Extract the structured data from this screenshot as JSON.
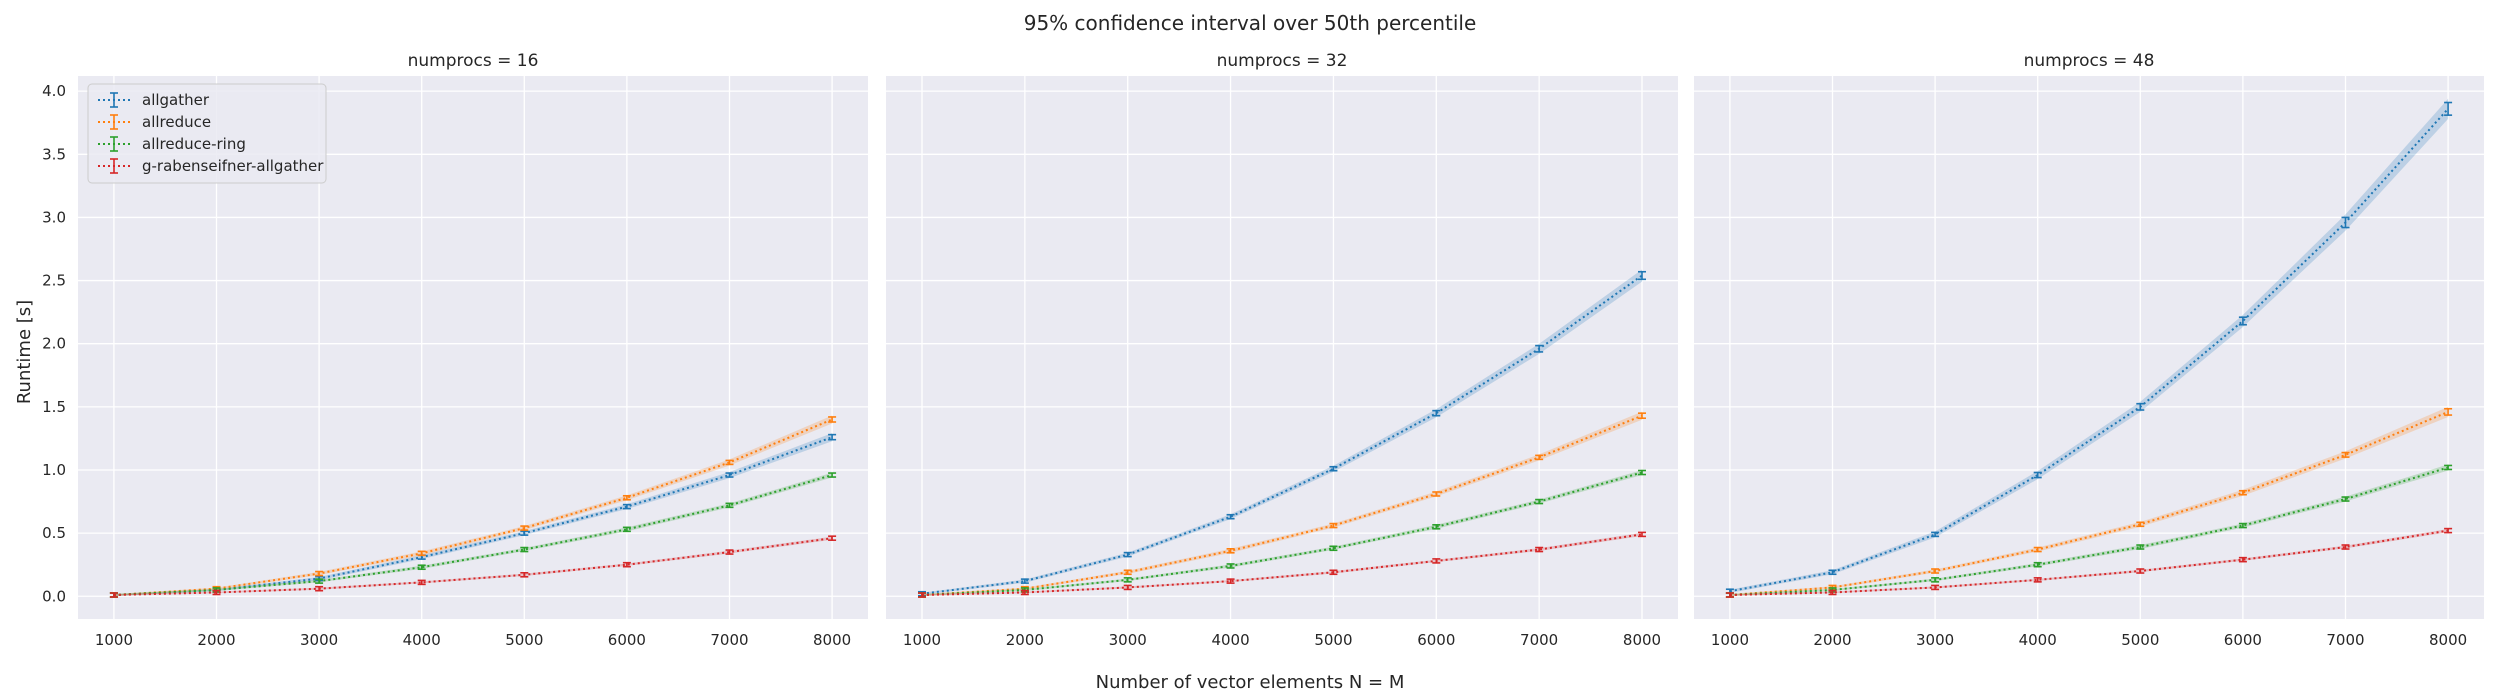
{
  "figure": {
    "suptitle": "95% confidence interval over 50th percentile",
    "xlabel": "Number of vector elements N = M",
    "ylabel": "Runtime [s]"
  },
  "colors": {
    "allgather": "#1f77b4",
    "allreduce": "#ff7f0e",
    "allreduce-ring": "#2ca02c",
    "g-rabenseifner-allgather": "#d62728",
    "panel_bg": "#eaeaf2",
    "grid": "#ffffff"
  },
  "chart_data": [
    {
      "type": "line",
      "title": "numprocs = 16",
      "x": [
        1000,
        2000,
        3000,
        4000,
        5000,
        6000,
        7000,
        8000
      ],
      "xticks": [
        "1000",
        "2000",
        "3000",
        "4000",
        "5000",
        "6000",
        "7000",
        "8000"
      ],
      "yticks": [
        "0.0",
        "0.5",
        "1.0",
        "1.5",
        "2.0",
        "2.5",
        "3.0",
        "3.5",
        "4.0"
      ],
      "xlim": [
        650,
        8350
      ],
      "ylim": [
        -0.18,
        4.12
      ],
      "grid": true,
      "legend": "top-left",
      "series": [
        {
          "name": "allgather",
          "values": [
            0.01,
            0.05,
            0.14,
            0.31,
            0.5,
            0.71,
            0.96,
            1.26
          ],
          "err": [
            0.005,
            0.005,
            0.008,
            0.01,
            0.01,
            0.012,
            0.015,
            0.02
          ]
        },
        {
          "name": "allreduce",
          "values": [
            0.01,
            0.06,
            0.18,
            0.34,
            0.54,
            0.78,
            1.06,
            1.4
          ],
          "err": [
            0.005,
            0.005,
            0.008,
            0.01,
            0.01,
            0.012,
            0.015,
            0.02
          ]
        },
        {
          "name": "allreduce-ring",
          "values": [
            0.01,
            0.05,
            0.12,
            0.23,
            0.37,
            0.53,
            0.72,
            0.96
          ],
          "err": [
            0.005,
            0.005,
            0.006,
            0.008,
            0.008,
            0.01,
            0.01,
            0.012
          ]
        },
        {
          "name": "g-rabenseifner-allgather",
          "values": [
            0.01,
            0.03,
            0.06,
            0.11,
            0.17,
            0.25,
            0.35,
            0.46
          ],
          "err": [
            0.004,
            0.004,
            0.005,
            0.005,
            0.006,
            0.006,
            0.007,
            0.008
          ]
        }
      ]
    },
    {
      "type": "line",
      "title": "numprocs = 32",
      "x": [
        1000,
        2000,
        3000,
        4000,
        5000,
        6000,
        7000,
        8000
      ],
      "xticks": [
        "1000",
        "2000",
        "3000",
        "4000",
        "5000",
        "6000",
        "7000",
        "8000"
      ],
      "yticks": [],
      "xlim": [
        650,
        8350
      ],
      "ylim": [
        -0.18,
        4.12
      ],
      "grid": true,
      "series": [
        {
          "name": "allgather",
          "values": [
            0.02,
            0.12,
            0.33,
            0.63,
            1.01,
            1.45,
            1.96,
            2.54
          ],
          "err": [
            0.005,
            0.008,
            0.01,
            0.012,
            0.015,
            0.02,
            0.025,
            0.03
          ]
        },
        {
          "name": "allreduce",
          "values": [
            0.01,
            0.06,
            0.19,
            0.36,
            0.56,
            0.81,
            1.1,
            1.43
          ],
          "err": [
            0.005,
            0.005,
            0.008,
            0.01,
            0.01,
            0.012,
            0.015,
            0.02
          ]
        },
        {
          "name": "allreduce-ring",
          "values": [
            0.01,
            0.05,
            0.13,
            0.24,
            0.38,
            0.55,
            0.75,
            0.98
          ],
          "err": [
            0.005,
            0.005,
            0.006,
            0.008,
            0.008,
            0.01,
            0.01,
            0.012
          ]
        },
        {
          "name": "g-rabenseifner-allgather",
          "values": [
            0.01,
            0.03,
            0.07,
            0.12,
            0.19,
            0.28,
            0.37,
            0.49
          ],
          "err": [
            0.004,
            0.004,
            0.005,
            0.005,
            0.006,
            0.006,
            0.007,
            0.008
          ]
        }
      ]
    },
    {
      "type": "line",
      "title": "numprocs = 48",
      "x": [
        1000,
        2000,
        3000,
        4000,
        5000,
        6000,
        7000,
        8000
      ],
      "xticks": [
        "1000",
        "2000",
        "3000",
        "4000",
        "5000",
        "6000",
        "7000",
        "8000"
      ],
      "yticks": [],
      "xlim": [
        650,
        8350
      ],
      "ylim": [
        -0.18,
        4.12
      ],
      "grid": true,
      "series": [
        {
          "name": "allgather",
          "values": [
            0.04,
            0.19,
            0.49,
            0.96,
            1.5,
            2.18,
            2.96,
            3.86
          ],
          "err": [
            0.008,
            0.01,
            0.015,
            0.02,
            0.025,
            0.03,
            0.04,
            0.05
          ]
        },
        {
          "name": "allreduce",
          "values": [
            0.01,
            0.07,
            0.2,
            0.37,
            0.57,
            0.82,
            1.12,
            1.46
          ],
          "err": [
            0.005,
            0.006,
            0.008,
            0.01,
            0.012,
            0.015,
            0.018,
            0.025
          ]
        },
        {
          "name": "allreduce-ring",
          "values": [
            0.01,
            0.05,
            0.13,
            0.25,
            0.39,
            0.56,
            0.77,
            1.02
          ],
          "err": [
            0.005,
            0.005,
            0.006,
            0.008,
            0.01,
            0.01,
            0.012,
            0.015
          ]
        },
        {
          "name": "g-rabenseifner-allgather",
          "values": [
            0.01,
            0.03,
            0.07,
            0.13,
            0.2,
            0.29,
            0.39,
            0.52
          ],
          "err": [
            0.004,
            0.004,
            0.005,
            0.005,
            0.006,
            0.006,
            0.007,
            0.008
          ]
        }
      ]
    }
  ]
}
